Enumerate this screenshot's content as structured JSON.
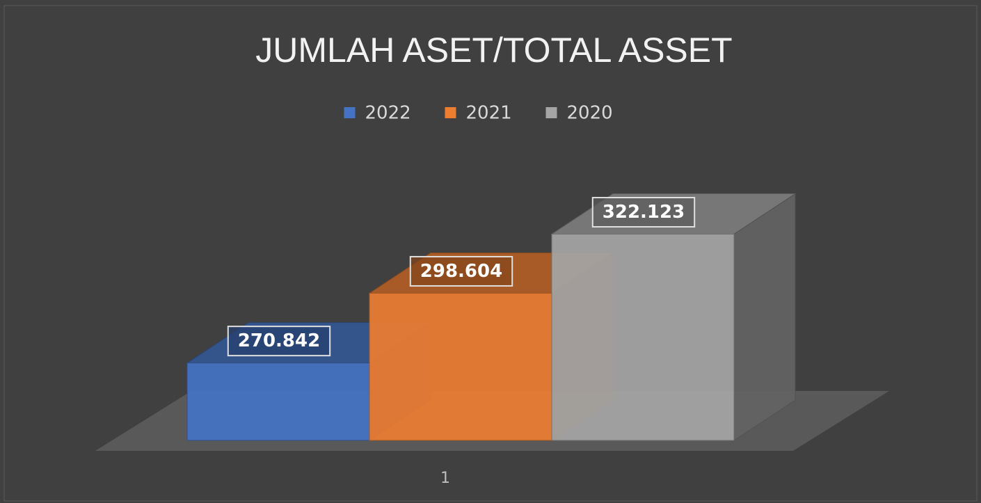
{
  "chart_data": {
    "type": "bar3d",
    "title": "JUMLAH ASET/TOTAL ASSET",
    "categories": [
      "1"
    ],
    "series": [
      {
        "name": "2022",
        "color": "#4472c4",
        "values": [
          270.842
        ]
      },
      {
        "name": "2021",
        "color": "#ed7d31",
        "values": [
          298.604
        ]
      },
      {
        "name": "2020",
        "color": "#a5a5a5",
        "values": [
          322.123
        ]
      }
    ],
    "ylim": [
      240,
      340
    ]
  }
}
